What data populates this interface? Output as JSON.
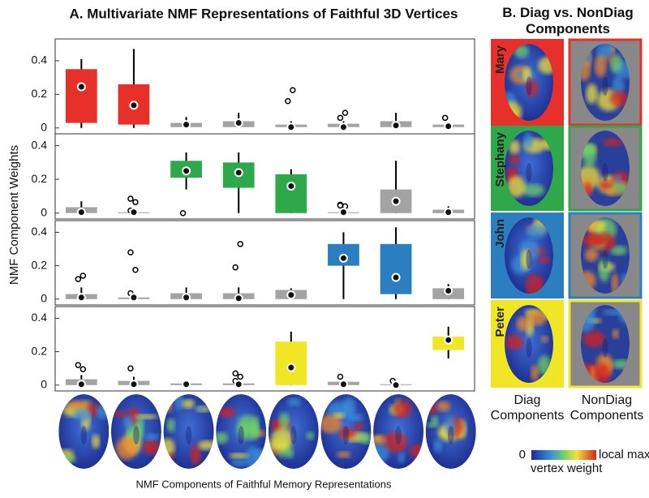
{
  "title_a": "A. Multivariate NMF Representations of  Faithful 3D Vertices",
  "ylabel": "NMF Component Weights",
  "xlabel": "NMF Components of Faithful Memory Representations",
  "chart_data": [
    {
      "type": "box",
      "ylim": [
        -0.035,
        0.53
      ],
      "yticks": [
        0,
        0.2,
        0.4
      ],
      "categories": [
        null,
        null,
        null,
        null,
        null,
        null,
        null,
        null
      ],
      "boxes": [
        {
          "box": [
            0.03,
            0.35
          ],
          "whisker": [
            0,
            0.41
          ],
          "mean": 0.245,
          "outliers": [],
          "color": "#e8302a"
        },
        {
          "box": [
            0.02,
            0.26
          ],
          "whisker": [
            0,
            0.47
          ],
          "mean": 0.135,
          "outliers": [],
          "color": "#e8302a"
        },
        {
          "box": [
            0.005,
            0.03
          ],
          "whisker": [
            0.005,
            0.065
          ],
          "mean": 0.02,
          "outliers": [],
          "color": "#a3a3a3"
        },
        {
          "box": [
            0.005,
            0.04
          ],
          "whisker": [
            0.005,
            0.09
          ],
          "mean": 0.03,
          "outliers": [],
          "color": "#a3a3a3"
        },
        {
          "box": [
            0.005,
            0.02
          ],
          "whisker": [
            0.005,
            0.04
          ],
          "mean": 0.005,
          "outliers": [
            0.16,
            0.225
          ],
          "color": "#a3a3a3"
        },
        {
          "box": [
            0.005,
            0.025
          ],
          "whisker": [
            0.005,
            0.04
          ],
          "mean": 0.005,
          "outliers": [
            0.06,
            0.09
          ],
          "color": "#a3a3a3"
        },
        {
          "box": [
            0.005,
            0.04
          ],
          "whisker": [
            0.005,
            0.09
          ],
          "mean": 0.015,
          "outliers": [],
          "color": "#a3a3a3"
        },
        {
          "box": [
            0.005,
            0.02
          ],
          "whisker": [
            0.005,
            0.03
          ],
          "mean": 0.01,
          "outliers": [
            0.06
          ],
          "color": "#a3a3a3"
        }
      ]
    },
    {
      "type": "box",
      "ylim": [
        -0.035,
        0.47
      ],
      "yticks": [
        0,
        0.2,
        0.4
      ],
      "categories": [
        null,
        null,
        null,
        null,
        null,
        null,
        null,
        null
      ],
      "boxes": [
        {
          "box": [
            0,
            0.035
          ],
          "whisker": [
            0,
            0.07
          ],
          "mean": 0.005,
          "outliers": [],
          "color": "#a3a3a3"
        },
        {
          "box": [
            0,
            0.005
          ],
          "whisker": [
            0,
            0.005
          ],
          "mean": 0.005,
          "outliers": [
            0.085,
            0.065,
            0.015
          ],
          "color": "#a3a3a3"
        },
        {
          "box": [
            0.21,
            0.31
          ],
          "whisker": [
            0.14,
            0.36
          ],
          "mean": 0.25,
          "outliers": [
            0
          ],
          "color": "#2ea84a"
        },
        {
          "box": [
            0.15,
            0.3
          ],
          "whisker": [
            0,
            0.36
          ],
          "mean": 0.24,
          "outliers": [],
          "color": "#2ea84a"
        },
        {
          "box": [
            0,
            0.23
          ],
          "whisker": [
            0,
            0.26
          ],
          "mean": 0.16,
          "outliers": [],
          "color": "#2ea84a"
        },
        {
          "box": [
            0,
            0.005
          ],
          "whisker": [
            0,
            0.005
          ],
          "mean": 0.005,
          "outliers": [
            0.05,
            0.04,
            0.045
          ],
          "color": "#a3a3a3"
        },
        {
          "box": [
            0,
            0.14
          ],
          "whisker": [
            0,
            0.31
          ],
          "mean": 0.07,
          "outliers": [],
          "color": "#a3a3a3"
        },
        {
          "box": [
            0,
            0.02
          ],
          "whisker": [
            0,
            0.04
          ],
          "mean": 0.005,
          "outliers": [],
          "color": "#a3a3a3"
        }
      ]
    },
    {
      "type": "box",
      "ylim": [
        -0.035,
        0.47
      ],
      "yticks": [
        0,
        0.2,
        0.4
      ],
      "categories": [
        null,
        null,
        null,
        null,
        null,
        null,
        null,
        null
      ],
      "boxes": [
        {
          "box": [
            0,
            0.03
          ],
          "whisker": [
            0,
            0.07
          ],
          "mean": 0.01,
          "outliers": [
            0.12,
            0.14
          ],
          "color": "#a3a3a3"
        },
        {
          "box": [
            0,
            0.01
          ],
          "whisker": [
            0,
            0.01
          ],
          "mean": 0.01,
          "outliers": [
            0.28,
            0.175,
            0.035
          ],
          "color": "#a3a3a3"
        },
        {
          "box": [
            0,
            0.035
          ],
          "whisker": [
            0,
            0.07
          ],
          "mean": 0.01,
          "outliers": [],
          "color": "#a3a3a3"
        },
        {
          "box": [
            0,
            0.035
          ],
          "whisker": [
            0,
            0.07
          ],
          "mean": 0.005,
          "outliers": [
            0.19,
            0.33
          ],
          "color": "#a3a3a3"
        },
        {
          "box": [
            0,
            0.055
          ],
          "whisker": [
            0,
            0.065
          ],
          "mean": 0.025,
          "outliers": [],
          "color": "#a3a3a3"
        },
        {
          "box": [
            0.2,
            0.33
          ],
          "whisker": [
            0,
            0.4
          ],
          "mean": 0.245,
          "outliers": [],
          "color": "#2b7fc1"
        },
        {
          "box": [
            0.03,
            0.33
          ],
          "whisker": [
            0,
            0.43
          ],
          "mean": 0.13,
          "outliers": [],
          "color": "#2b7fc1"
        },
        {
          "box": [
            0,
            0.065
          ],
          "whisker": [
            0,
            0.09
          ],
          "mean": 0.05,
          "outliers": [],
          "color": "#a3a3a3"
        }
      ]
    },
    {
      "type": "box",
      "ylim": [
        -0.035,
        0.47
      ],
      "yticks": [
        0,
        0.2,
        0.4
      ],
      "categories": [
        null,
        null,
        null,
        null,
        null,
        null,
        null,
        null
      ],
      "boxes": [
        {
          "box": [
            0,
            0.035
          ],
          "whisker": [
            0,
            0.06
          ],
          "mean": 0.005,
          "outliers": [
            0.12,
            0.095
          ],
          "color": "#a3a3a3"
        },
        {
          "box": [
            0,
            0.025
          ],
          "whisker": [
            0,
            0.05
          ],
          "mean": 0.005,
          "outliers": [
            0.1
          ],
          "color": "#a3a3a3"
        },
        {
          "box": [
            0,
            0.01
          ],
          "whisker": [
            0,
            0.01
          ],
          "mean": 0.005,
          "outliers": [],
          "color": "#a3a3a3"
        },
        {
          "box": [
            0,
            0.01
          ],
          "whisker": [
            0,
            0.01
          ],
          "mean": 0.005,
          "outliers": [
            0.07,
            0.05,
            0.025
          ],
          "color": "#a3a3a3"
        },
        {
          "box": [
            0,
            0.26
          ],
          "whisker": [
            0,
            0.32
          ],
          "mean": 0.105,
          "outliers": [],
          "color": "#f0e626"
        },
        {
          "box": [
            0,
            0.02
          ],
          "whisker": [
            0,
            0.02
          ],
          "mean": 0.005,
          "outliers": [
            0.05
          ],
          "color": "#a3a3a3"
        },
        {
          "box": [
            0,
            0.005
          ],
          "whisker": [
            0,
            0.005
          ],
          "mean": 0,
          "outliers": [
            0.025
          ],
          "color": "#a3a3a3"
        },
        {
          "box": [
            0.21,
            0.29
          ],
          "whisker": [
            0.16,
            0.35
          ],
          "mean": 0.27,
          "outliers": [],
          "color": "#f0e626"
        }
      ]
    }
  ],
  "panel_b": {
    "title": "B. Diag vs. NonDiag Components",
    "rows": [
      {
        "name": "Mary",
        "color": "#e8302a"
      },
      {
        "name": "Stephany",
        "color": "#2ea84a"
      },
      {
        "name": "John",
        "color": "#2b7fc1"
      },
      {
        "name": "Peter",
        "color": "#f0e626"
      }
    ],
    "column_labels": [
      "Diag Components",
      "NonDiag Components"
    ]
  },
  "colorbar": {
    "min_label": "0",
    "max_label": "local max",
    "label": "vertex weight"
  }
}
